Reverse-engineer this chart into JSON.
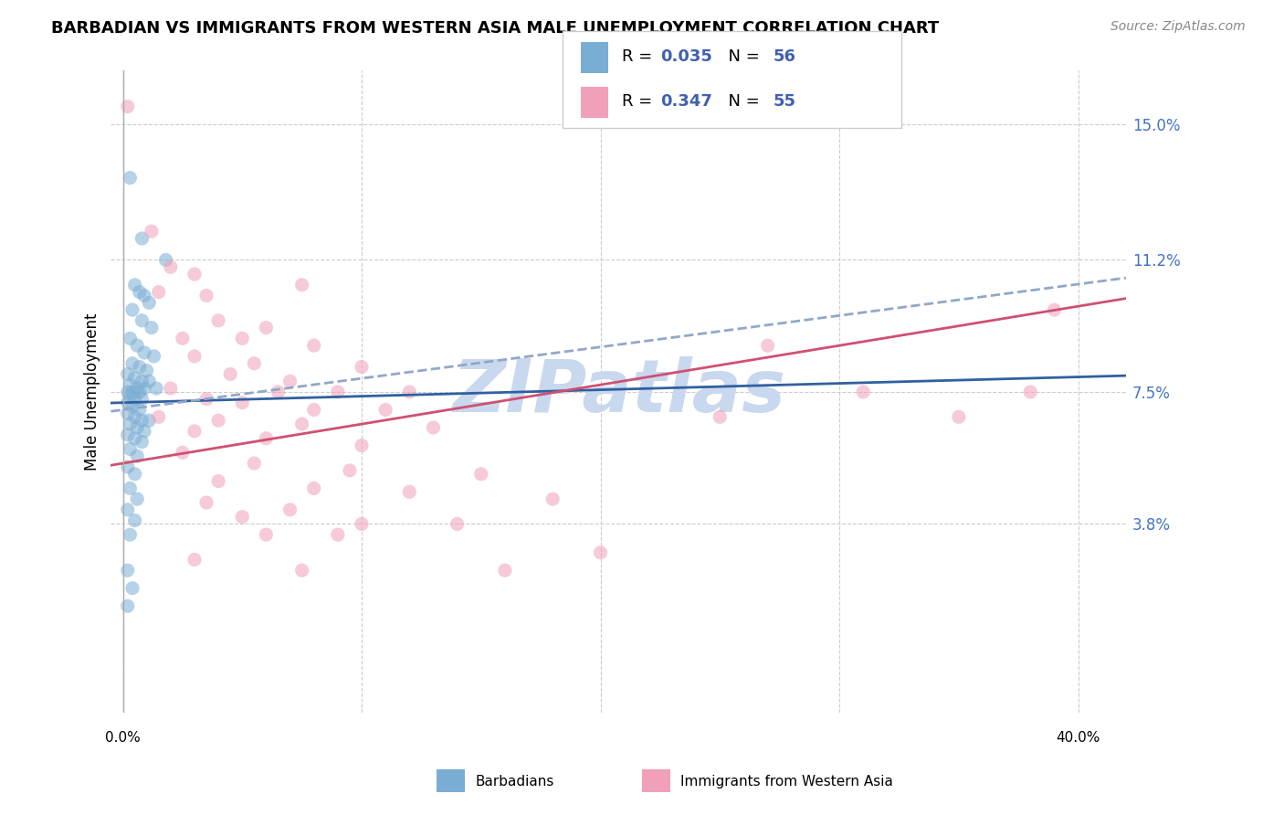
{
  "title": "BARBADIAN VS IMMIGRANTS FROM WESTERN ASIA MALE UNEMPLOYMENT CORRELATION CHART",
  "source": "Source: ZipAtlas.com",
  "ylabel": "Male Unemployment",
  "ytick_labels": [
    "15.0%",
    "11.2%",
    "7.5%",
    "3.8%"
  ],
  "ytick_values": [
    15.0,
    11.2,
    7.5,
    3.8
  ],
  "xmin": -0.5,
  "xmax": 42.0,
  "ymin": -1.5,
  "ymax": 16.5,
  "blue_color": "#7aadd4",
  "pink_color": "#f0a0b8",
  "blue_scatter": [
    [
      0.3,
      13.5
    ],
    [
      0.8,
      11.8
    ],
    [
      1.8,
      11.2
    ],
    [
      0.5,
      10.5
    ],
    [
      0.7,
      10.3
    ],
    [
      0.9,
      10.2
    ],
    [
      1.1,
      10.0
    ],
    [
      0.4,
      9.8
    ],
    [
      0.8,
      9.5
    ],
    [
      1.2,
      9.3
    ],
    [
      0.3,
      9.0
    ],
    [
      0.6,
      8.8
    ],
    [
      0.9,
      8.6
    ],
    [
      1.3,
      8.5
    ],
    [
      0.4,
      8.3
    ],
    [
      0.7,
      8.2
    ],
    [
      1.0,
      8.1
    ],
    [
      0.2,
      8.0
    ],
    [
      0.5,
      7.9
    ],
    [
      0.8,
      7.8
    ],
    [
      1.1,
      7.8
    ],
    [
      0.3,
      7.7
    ],
    [
      0.6,
      7.6
    ],
    [
      0.9,
      7.6
    ],
    [
      1.4,
      7.6
    ],
    [
      0.2,
      7.5
    ],
    [
      0.4,
      7.5
    ],
    [
      0.7,
      7.5
    ],
    [
      0.3,
      7.4
    ],
    [
      0.5,
      7.3
    ],
    [
      0.8,
      7.3
    ],
    [
      0.2,
      7.2
    ],
    [
      0.4,
      7.1
    ],
    [
      0.7,
      7.0
    ],
    [
      0.2,
      6.9
    ],
    [
      0.5,
      6.8
    ],
    [
      0.8,
      6.7
    ],
    [
      1.1,
      6.7
    ],
    [
      0.3,
      6.6
    ],
    [
      0.6,
      6.5
    ],
    [
      0.9,
      6.4
    ],
    [
      0.2,
      6.3
    ],
    [
      0.5,
      6.2
    ],
    [
      0.8,
      6.1
    ],
    [
      0.3,
      5.9
    ],
    [
      0.6,
      5.7
    ],
    [
      0.2,
      5.4
    ],
    [
      0.5,
      5.2
    ],
    [
      0.3,
      4.8
    ],
    [
      0.6,
      4.5
    ],
    [
      0.2,
      4.2
    ],
    [
      0.5,
      3.9
    ],
    [
      0.3,
      3.5
    ],
    [
      0.2,
      2.5
    ],
    [
      0.4,
      2.0
    ],
    [
      0.2,
      1.5
    ]
  ],
  "pink_scatter": [
    [
      0.2,
      15.5
    ],
    [
      1.2,
      12.0
    ],
    [
      2.0,
      11.0
    ],
    [
      3.0,
      10.8
    ],
    [
      1.5,
      10.3
    ],
    [
      3.5,
      10.2
    ],
    [
      7.5,
      10.5
    ],
    [
      4.0,
      9.5
    ],
    [
      6.0,
      9.3
    ],
    [
      2.5,
      9.0
    ],
    [
      5.0,
      9.0
    ],
    [
      8.0,
      8.8
    ],
    [
      3.0,
      8.5
    ],
    [
      5.5,
      8.3
    ],
    [
      10.0,
      8.2
    ],
    [
      4.5,
      8.0
    ],
    [
      7.0,
      7.8
    ],
    [
      2.0,
      7.6
    ],
    [
      6.5,
      7.5
    ],
    [
      9.0,
      7.5
    ],
    [
      12.0,
      7.5
    ],
    [
      3.5,
      7.3
    ],
    [
      5.0,
      7.2
    ],
    [
      8.0,
      7.0
    ],
    [
      11.0,
      7.0
    ],
    [
      1.5,
      6.8
    ],
    [
      4.0,
      6.7
    ],
    [
      7.5,
      6.6
    ],
    [
      13.0,
      6.5
    ],
    [
      3.0,
      6.4
    ],
    [
      6.0,
      6.2
    ],
    [
      10.0,
      6.0
    ],
    [
      2.5,
      5.8
    ],
    [
      5.5,
      5.5
    ],
    [
      9.5,
      5.3
    ],
    [
      15.0,
      5.2
    ],
    [
      4.0,
      5.0
    ],
    [
      8.0,
      4.8
    ],
    [
      12.0,
      4.7
    ],
    [
      3.5,
      4.4
    ],
    [
      7.0,
      4.2
    ],
    [
      18.0,
      4.5
    ],
    [
      5.0,
      4.0
    ],
    [
      10.0,
      3.8
    ],
    [
      14.0,
      3.8
    ],
    [
      6.0,
      3.5
    ],
    [
      9.0,
      3.5
    ],
    [
      20.0,
      3.0
    ],
    [
      3.0,
      2.8
    ],
    [
      7.5,
      2.5
    ],
    [
      16.0,
      2.5
    ],
    [
      25.0,
      6.8
    ],
    [
      27.0,
      8.8
    ],
    [
      31.0,
      7.5
    ],
    [
      35.0,
      6.8
    ],
    [
      38.0,
      7.5
    ],
    [
      39.0,
      9.8
    ]
  ],
  "trendline_blue_color": "#3060a0",
  "trendline_pink_color": "#d05070",
  "trendline_dashed_color": "#90a8c8",
  "watermark_text": "ZIPatlas",
  "watermark_color": "#c8d8ee"
}
